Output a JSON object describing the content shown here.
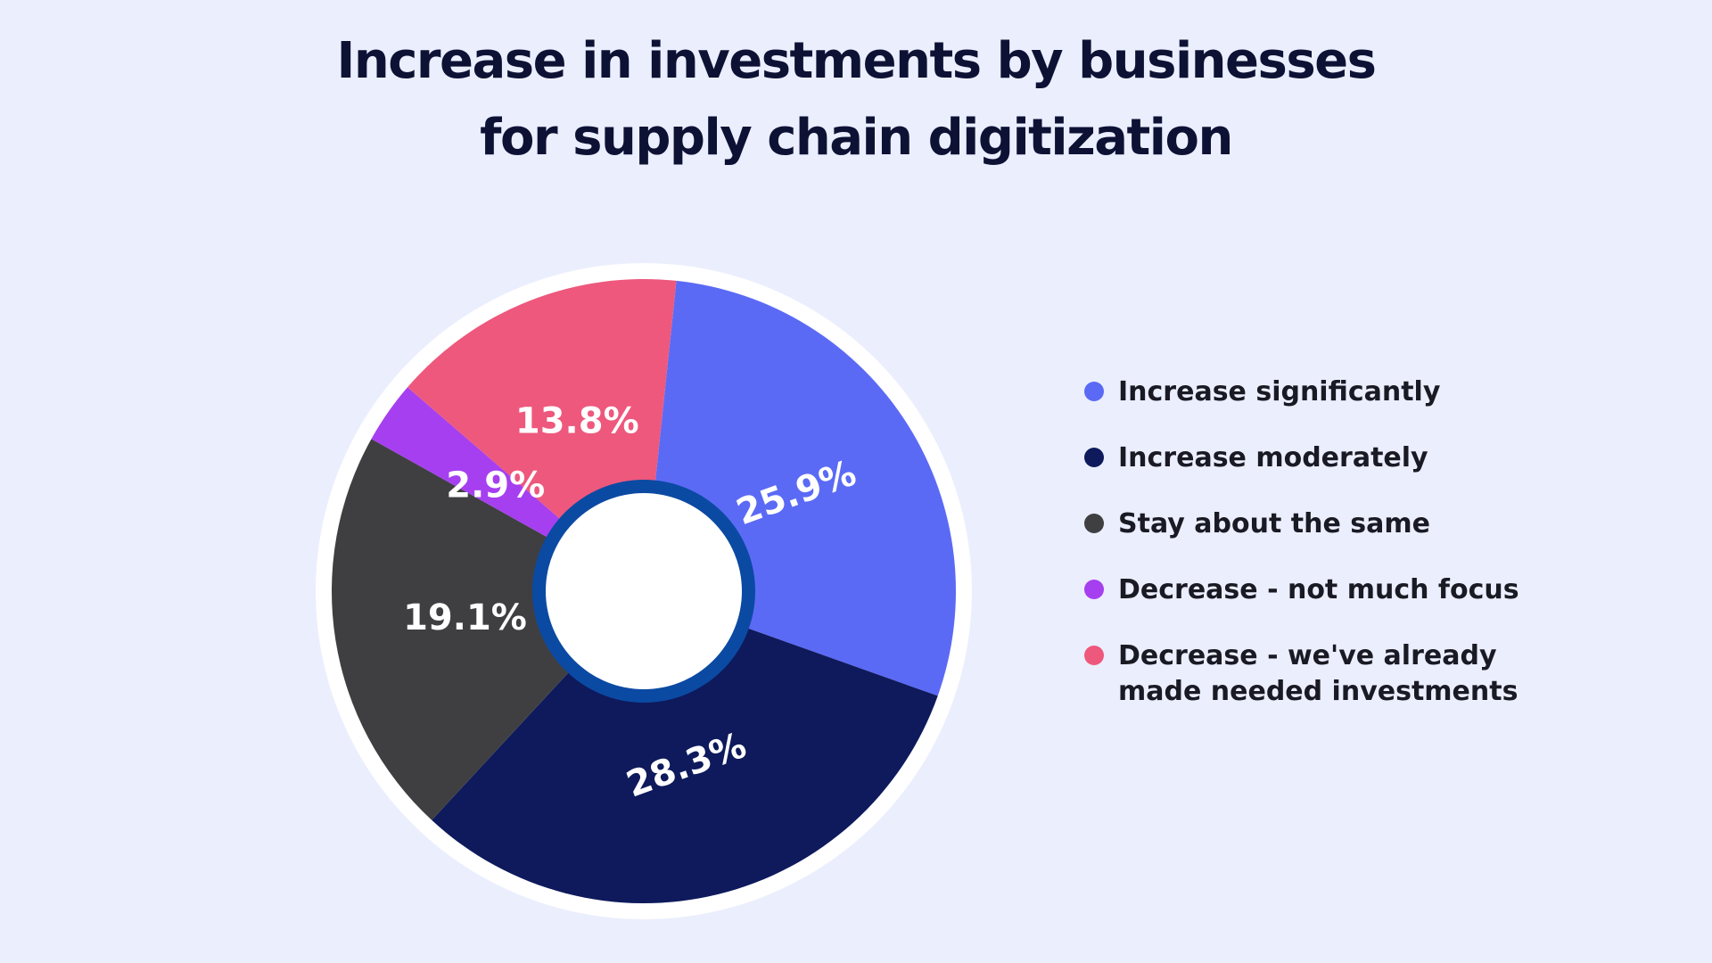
{
  "chart_data": {
    "type": "pie",
    "title_lines": [
      "Increase in investments by businesses",
      "for supply chain digitization"
    ],
    "slices": [
      {
        "name": "Increase significantly",
        "value": 25.9,
        "label": "25.9%",
        "color": "#5b6af5"
      },
      {
        "name": "Increase moderately",
        "value": 28.3,
        "label": "28.3%",
        "color": "#0e1a5c"
      },
      {
        "name": "Stay about the same",
        "value": 19.1,
        "label": "19.1%",
        "color": "#3f3f42"
      },
      {
        "name": "Decrease - not much focus",
        "value": 2.9,
        "label": "2.9%",
        "color": "#a63ff0"
      },
      {
        "name": "Decrease - we've already made needed investments",
        "value": 13.8,
        "label": "13.8%",
        "color": "#ee587c"
      }
    ],
    "legend_placement": "right",
    "donut": true
  },
  "colors": {
    "background": "#ebeefd",
    "title": "#0d1235",
    "ring": "#0b4aa3",
    "outer_border": "#ffffff"
  }
}
